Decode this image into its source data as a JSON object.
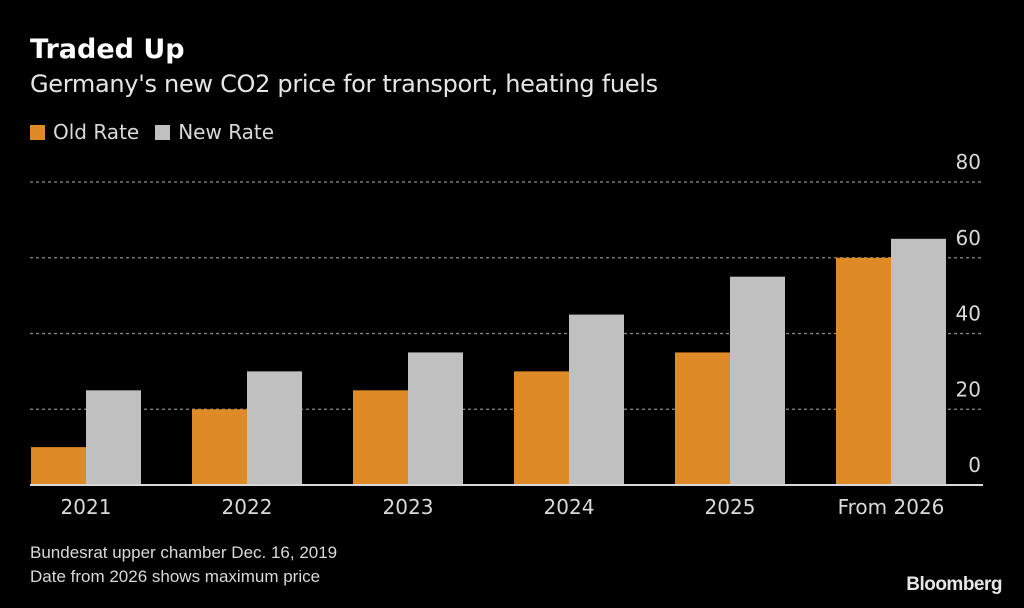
{
  "chart_data": {
    "type": "bar",
    "title": "Traded Up",
    "subtitle": "Germany's new CO2 price for transport, heating fuels",
    "categories": [
      "2021",
      "2022",
      "2023",
      "2024",
      "2025",
      "From 2026"
    ],
    "series": [
      {
        "name": "Old Rate",
        "color": "#dd8a27",
        "values": [
          10,
          20,
          25,
          30,
          35,
          60
        ]
      },
      {
        "name": "New Rate",
        "color": "#c0c0c0",
        "values": [
          25,
          30,
          35,
          45,
          55,
          65
        ]
      }
    ],
    "xlabel": "",
    "ylabel": "",
    "ylim": [
      0,
      80
    ],
    "yticks": [
      0,
      20,
      40,
      60,
      80
    ],
    "y_axis_side": "right",
    "grid": true,
    "legend_position": "top-left"
  },
  "footnotes": [
    "Bundesrat upper chamber Dec. 16, 2019",
    "Date from 2026 shows maximum price"
  ],
  "brand": "Bloomberg",
  "colors": {
    "background": "#000000",
    "grid": "#8c8c8c",
    "axis": "#d9d9d9",
    "text": "#d9d9d9"
  }
}
